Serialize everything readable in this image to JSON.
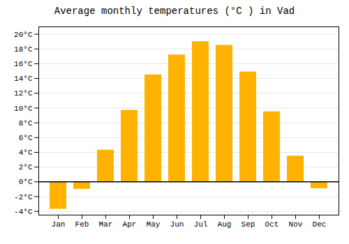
{
  "chart_data": {
    "type": "bar",
    "title": "Average monthly temperatures (°C ) in Vad",
    "categories": [
      "Jan",
      "Feb",
      "Mar",
      "Apr",
      "May",
      "Jun",
      "Jul",
      "Aug",
      "Sep",
      "Oct",
      "Nov",
      "Dec"
    ],
    "values": [
      -3.7,
      -1.0,
      4.3,
      9.7,
      14.5,
      17.2,
      19.0,
      18.5,
      14.9,
      9.5,
      3.5,
      -0.9
    ],
    "color": "#FFB300",
    "ylim": [
      -4.5,
      21.0
    ],
    "yticks": [
      {
        "value": -4,
        "label": "-4°C"
      },
      {
        "value": -2,
        "label": "-2°C"
      },
      {
        "value": 0,
        "label": "0°C"
      },
      {
        "value": 2,
        "label": "2°C"
      },
      {
        "value": 4,
        "label": "4°C"
      },
      {
        "value": 6,
        "label": "6°C"
      },
      {
        "value": 8,
        "label": "8°C"
      },
      {
        "value": 10,
        "label": "10°C"
      },
      {
        "value": 12,
        "label": "12°C"
      },
      {
        "value": 14,
        "label": "14°C"
      },
      {
        "value": 16,
        "label": "16°C"
      },
      {
        "value": 18,
        "label": "18°C"
      },
      {
        "value": 20,
        "label": "20°C"
      }
    ],
    "grid": true
  }
}
